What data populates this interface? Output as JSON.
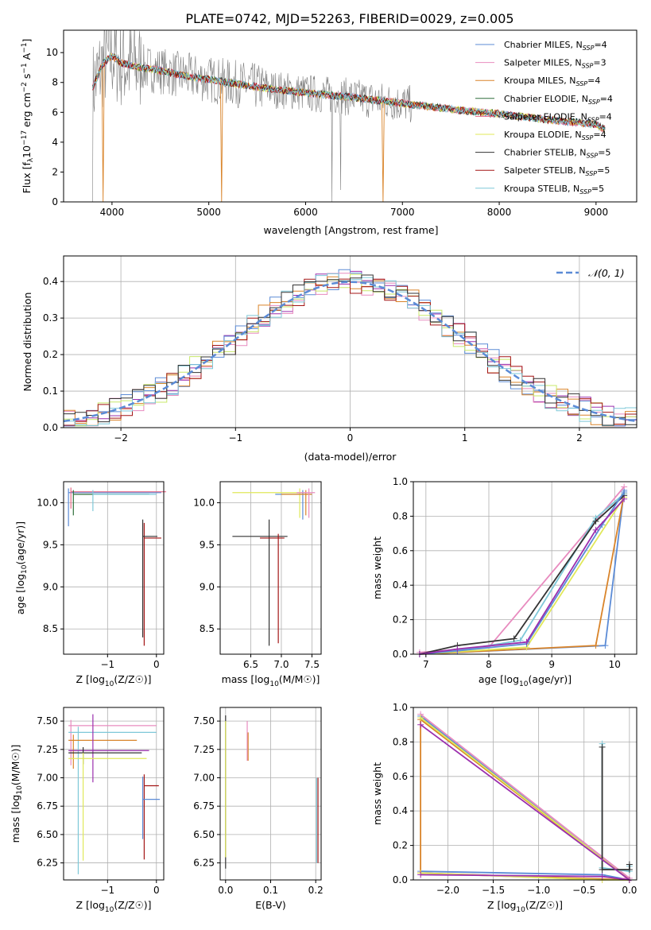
{
  "title": "PLATE=0742, MJD=52263, FIBERID=0029, z=0.005",
  "colors": {
    "models": [
      "#5b8bd6",
      "#e88bbf",
      "#d9842a",
      "#2e6e3a",
      "#e66a87",
      "#e0e85a",
      "#333333",
      "#a31515",
      "#7ec8d8"
    ],
    "data_gray": "#808080",
    "gauss": "#5b8bd6",
    "hist": [
      "#9b2fae",
      "#5b8bd6",
      "#e88bbf",
      "#d9842a",
      "#c8e86a",
      "#a31515",
      "#7ec8d8",
      "#333333"
    ]
  },
  "chart_data": [
    {
      "id": "spectrum",
      "type": "line",
      "xlabel": "wavelength [Angstrom, rest frame]",
      "ylabel": "Flux [f",
      "xlim": [
        3500,
        9420
      ],
      "ylim": [
        0,
        11.5
      ],
      "xticks": [
        "4000",
        "5000",
        "6000",
        "7000",
        "8000",
        "9000"
      ],
      "yticks": [
        "0",
        "2",
        "4",
        "6",
        "8",
        "10"
      ],
      "continuum": {
        "x": [
          3800,
          3900,
          4000,
          4100,
          4300,
          4500,
          4700,
          5000,
          5300,
          5600,
          6000,
          6500,
          7000,
          7500,
          8000,
          8500,
          9000,
          9100
        ],
        "y": [
          7.6,
          9.2,
          9.8,
          9.3,
          9.0,
          8.8,
          8.5,
          8.2,
          7.9,
          7.6,
          7.3,
          7.0,
          6.6,
          6.2,
          5.9,
          5.5,
          5.2,
          4.8
        ]
      },
      "legend": [
        {
          "label": "Chabrier MILES, N",
          "sub": "SSP",
          "suffix": "=4"
        },
        {
          "label": "Salpeter MILES, N",
          "sub": "SSP",
          "suffix": "=3"
        },
        {
          "label": "Kroupa MILES, N",
          "sub": "SSP",
          "suffix": "=4"
        },
        {
          "label": "Chabrier ELODIE, N",
          "sub": "SSP",
          "suffix": "=4"
        },
        {
          "label": "Salpeter ELODIE, N",
          "sub": "SSP",
          "suffix": "=4"
        },
        {
          "label": "Kroupa ELODIE, N",
          "sub": "SSP",
          "suffix": "=4"
        },
        {
          "label": "Chabrier STELIB, N",
          "sub": "SSP",
          "suffix": "=5"
        },
        {
          "label": "Salpeter STELIB, N",
          "sub": "SSP",
          "suffix": "=5"
        },
        {
          "label": "Kroupa STELIB, N",
          "sub": "SSP",
          "suffix": "=5"
        }
      ]
    },
    {
      "id": "residuals",
      "type": "line",
      "xlabel": "(data-model)/error",
      "ylabel": "Normed distribution",
      "xlim": [
        -2.5,
        2.5
      ],
      "ylim": [
        0,
        0.47
      ],
      "xticks": [
        "−2",
        "−1",
        "0",
        "1",
        "2"
      ],
      "yticks": [
        "0.0",
        "0.1",
        "0.2",
        "0.3",
        "0.4"
      ],
      "bin_width": 0.1,
      "legend": "𝒩(0, 1)"
    },
    {
      "id": "age_vs_Z",
      "type": "scatter",
      "xlabel": "Z [log",
      "ylabel": "age  [log",
      "xlim": [
        -1.9,
        0.15
      ],
      "ylim": [
        8.2,
        10.25
      ],
      "xticks": [
        "−1",
        "0"
      ],
      "yticks": [
        "8.5",
        "9.0",
        "9.5",
        "10.0"
      ],
      "points": [
        {
          "x": -1.8,
          "y": 10.12,
          "xerr": [
            0.0,
            1.9
          ],
          "yerr": [
            0.4,
            0.05
          ],
          "c": 0
        },
        {
          "x": -1.75,
          "y": 10.13,
          "xerr": [
            0.0,
            1.95
          ],
          "yerr": [
            0.2,
            0.05
          ],
          "c": 4
        },
        {
          "x": -1.7,
          "y": 10.1,
          "xerr": [
            0.0,
            1.55
          ],
          "yerr": [
            0.25,
            0.05
          ],
          "c": 3
        },
        {
          "x": -1.3,
          "y": 10.1,
          "xerr": [
            0.0,
            1.3
          ],
          "yerr": [
            0.2,
            0.05
          ],
          "c": 8
        },
        {
          "x": -0.25,
          "y": 9.58,
          "xerr": [
            0.0,
            0.35
          ],
          "yerr": [
            1.28,
            0.18
          ],
          "c": 7
        },
        {
          "x": -0.28,
          "y": 9.6,
          "xerr": [
            0.0,
            0.3
          ],
          "yerr": [
            1.2,
            0.2
          ],
          "c": 6
        }
      ]
    },
    {
      "id": "age_vs_mass",
      "type": "scatter",
      "xlabel": "mass [log",
      "ylabel": "",
      "xlim": [
        6.0,
        7.65
      ],
      "ylim": [
        8.2,
        10.25
      ],
      "xticks": [
        "6.5",
        "7.0",
        "7.5"
      ],
      "yticks": [
        "8.5",
        "9.0",
        "9.5",
        "10.0"
      ],
      "points": [
        {
          "x": 7.3,
          "y": 10.12,
          "xerr": [
            1.1,
            0.1
          ],
          "yerr": [
            0.3,
            0.05
          ],
          "c": 5
        },
        {
          "x": 7.35,
          "y": 10.1,
          "xerr": [
            0.45,
            0.15
          ],
          "yerr": [
            0.3,
            0.05
          ],
          "c": 0
        },
        {
          "x": 7.4,
          "y": 10.1,
          "xerr": [
            0.4,
            0.1
          ],
          "yerr": [
            0.25,
            0.05
          ],
          "c": 2
        },
        {
          "x": 7.45,
          "y": 10.12,
          "xerr": [
            0.2,
            0.1
          ],
          "yerr": [
            0.3,
            0.05
          ],
          "c": 1
        },
        {
          "x": 6.8,
          "y": 9.6,
          "xerr": [
            0.6,
            0.3
          ],
          "yerr": [
            1.3,
            0.2
          ],
          "c": 6
        },
        {
          "x": 6.95,
          "y": 9.58,
          "xerr": [
            0.3,
            0.1
          ],
          "yerr": [
            1.25,
            0.05
          ],
          "c": 7
        }
      ]
    },
    {
      "id": "weight_vs_age",
      "type": "line",
      "xlabel": "age  [log",
      "ylabel": "mass weight",
      "xlim": [
        6.8,
        10.35
      ],
      "ylim": [
        0,
        1
      ],
      "xticks": [
        "7",
        "8",
        "9",
        "10"
      ],
      "yticks": [
        "0.0",
        "0.2",
        "0.4",
        "0.6",
        "0.8",
        "1.0"
      ],
      "series": [
        {
          "c": 0,
          "x": [
            6.9,
            9.85,
            10.15
          ],
          "y": [
            0.0,
            0.05,
            0.95
          ]
        },
        {
          "c": 1,
          "x": [
            6.9,
            8.0,
            10.15
          ],
          "y": [
            0.01,
            0.04,
            0.97
          ]
        },
        {
          "c": 2,
          "x": [
            6.9,
            9.7,
            10.15
          ],
          "y": [
            0.0,
            0.05,
            0.93
          ]
        },
        {
          "c": 5,
          "x": [
            6.9,
            8.6,
            10.15
          ],
          "y": [
            0.0,
            0.04,
            0.91
          ]
        },
        {
          "c": 8,
          "x": [
            6.9,
            7.5,
            8.5,
            9.7,
            10.15
          ],
          "y": [
            0.0,
            0.02,
            0.08,
            0.79,
            0.93
          ]
        },
        {
          "c": 6,
          "x": [
            6.9,
            7.5,
            8.4,
            9.7,
            10.15
          ],
          "y": [
            0.0,
            0.05,
            0.09,
            0.77,
            0.92
          ]
        },
        {
          "c": 0,
          "x": [
            6.9,
            7.5,
            8.6,
            9.8,
            10.15
          ],
          "y": [
            0.0,
            0.02,
            0.06,
            0.75,
            0.94
          ]
        },
        {
          "c": "hist0",
          "x": [
            6.9,
            7.5,
            8.6,
            9.7,
            10.15
          ],
          "y": [
            0.0,
            0.03,
            0.07,
            0.72,
            0.9
          ]
        }
      ]
    },
    {
      "id": "mass_vs_Z",
      "type": "scatter",
      "xlabel": "Z [log",
      "ylabel": "mass [log",
      "xlim": [
        -1.9,
        0.15
      ],
      "ylim": [
        6.1,
        7.62
      ],
      "xticks": [
        "−1",
        "0"
      ],
      "yticks": [
        "6.25",
        "6.50",
        "6.75",
        "7.00",
        "7.25",
        "7.50"
      ],
      "points": [
        {
          "x": -1.75,
          "y": 7.46,
          "xerr": [
            0.05,
            1.75
          ],
          "yerr": [
            0.35,
            0.05
          ],
          "c": 1
        },
        {
          "x": -1.6,
          "y": 7.4,
          "xerr": [
            0.2,
            1.6
          ],
          "yerr": [
            1.25,
            0.05
          ],
          "c": 8
        },
        {
          "x": -1.7,
          "y": 7.33,
          "xerr": [
            0.1,
            1.3
          ],
          "yerr": [
            0.25,
            0.05
          ],
          "c": 2
        },
        {
          "x": -1.3,
          "y": 7.24,
          "xerr": [
            0.5,
            1.15
          ],
          "yerr": [
            0.28,
            0.32
          ],
          "c": "hist0"
        },
        {
          "x": -1.5,
          "y": 7.22,
          "xerr": [
            0.3,
            1.2
          ],
          "yerr": [
            0.1,
            0.05
          ],
          "c": 6
        },
        {
          "x": -1.5,
          "y": 7.17,
          "xerr": [
            0.3,
            1.3
          ],
          "yerr": [
            0.9,
            0.05
          ],
          "c": 5
        },
        {
          "x": -0.25,
          "y": 6.93,
          "xerr": [
            0.0,
            0.3
          ],
          "yerr": [
            0.65,
            0.1
          ],
          "c": 7
        },
        {
          "x": -0.28,
          "y": 6.81,
          "xerr": [
            0.0,
            0.35
          ],
          "yerr": [
            0.35,
            0.2
          ],
          "c": 0
        }
      ]
    },
    {
      "id": "mass_vs_EBV",
      "type": "scatter",
      "xlabel": "E(B-V)",
      "ylabel": "",
      "xlim": [
        -0.012,
        0.212
      ],
      "ylim": [
        6.1,
        7.62
      ],
      "xticks": [
        "0.0",
        "0.1",
        "0.2"
      ],
      "yticks": [
        "6.25",
        "6.50",
        "6.75",
        "7.00",
        "7.25",
        "7.50"
      ],
      "points": [
        {
          "x": 0.0,
          "y": 7.4,
          "xerr": [
            0,
            0
          ],
          "yerr": [
            1.2,
            0.15
          ],
          "c": 6
        },
        {
          "x": 0.0,
          "y": 7.2,
          "xerr": [
            0,
            0
          ],
          "yerr": [
            0.9,
            0.3
          ],
          "c": 5
        },
        {
          "x": 0.048,
          "y": 7.3,
          "xerr": [
            0,
            0
          ],
          "yerr": [
            0.15,
            0.2
          ],
          "c": 1
        },
        {
          "x": 0.05,
          "y": 7.25,
          "xerr": [
            0,
            0
          ],
          "yerr": [
            0.1,
            0.15
          ],
          "c": 2
        },
        {
          "x": 0.202,
          "y": 6.8,
          "xerr": [
            0,
            0
          ],
          "yerr": [
            0.55,
            0.2
          ],
          "c": 8
        },
        {
          "x": 0.205,
          "y": 6.6,
          "xerr": [
            0,
            0
          ],
          "yerr": [
            0.35,
            0.4
          ],
          "c": 7
        }
      ]
    },
    {
      "id": "weight_vs_Z",
      "type": "line",
      "xlabel": "Z [log",
      "ylabel": "mass weight",
      "xlim": [
        -2.38,
        0.08
      ],
      "ylim": [
        0,
        1
      ],
      "xticks": [
        "−2.0",
        "−1.5",
        "−1.0",
        "−0.5",
        "0.0"
      ],
      "yticks": [
        "0.0",
        "0.2",
        "0.4",
        "0.6",
        "0.8",
        "1.0"
      ],
      "series": [
        {
          "c": 0,
          "x": [
            -2.3,
            -0.3,
            0.0,
            -2.3
          ],
          "y": [
            0.05,
            0.03,
            0.0,
            0.95
          ]
        },
        {
          "c": 1,
          "x": [
            -2.3,
            -0.3,
            0.0,
            -2.3
          ],
          "y": [
            0.04,
            0.0,
            0.01,
            0.96
          ]
        },
        {
          "c": 2,
          "x": [
            -2.3,
            -2.3,
            0.0,
            -2.3
          ],
          "y": [
            0.04,
            0.93,
            0.0,
            0.04
          ]
        },
        {
          "c": 5,
          "x": [
            -2.3,
            -0.3,
            0.0,
            -2.3
          ],
          "y": [
            0.04,
            0.0,
            0.0,
            0.94
          ]
        },
        {
          "c": 8,
          "x": [
            -0.3,
            -0.3,
            0.0,
            0.0
          ],
          "y": [
            0.79,
            0.07,
            0.05,
            0.08
          ]
        },
        {
          "c": 6,
          "x": [
            -0.3,
            -0.3,
            0.0,
            0.0
          ],
          "y": [
            0.77,
            0.06,
            0.06,
            0.09
          ]
        },
        {
          "c": "hist0",
          "x": [
            -2.3,
            -0.3,
            0.0,
            -2.3
          ],
          "y": [
            0.03,
            0.02,
            0.0,
            0.9
          ]
        }
      ]
    }
  ]
}
